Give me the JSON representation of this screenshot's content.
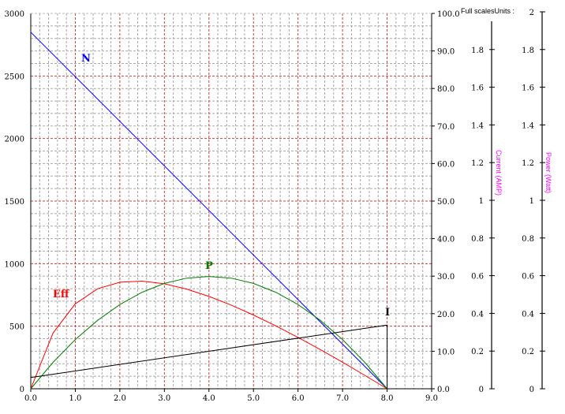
{
  "chart_data": {
    "type": "line",
    "title": "",
    "header_label": "Full scalesUnits :",
    "x": {
      "range": [
        0,
        9
      ],
      "ticks": [
        "0.0",
        "1.0",
        "2.0",
        "3.0",
        "4.0",
        "5.0",
        "6.0",
        "7.0",
        "8.0",
        "9.0"
      ]
    },
    "y_left": {
      "range": [
        0,
        3000
      ],
      "ticks": [
        "0",
        "500",
        "1000",
        "1500",
        "2000",
        "2500",
        "3000"
      ]
    },
    "y_right": {
      "range": [
        0,
        100
      ],
      "ticks": [
        "0.0",
        "10.0",
        "20.0",
        "30.0",
        "40.0",
        "50.0",
        "60.0",
        "70.0",
        "80.0",
        "90.0",
        "100.0"
      ]
    },
    "y_current": {
      "label": "Current (AMP)",
      "range": [
        0,
        2
      ],
      "ticks": [
        "0",
        "0.2",
        "0.4",
        "0.6",
        "0.8",
        "1",
        "1.2",
        "1.4",
        "1.6",
        "1.8"
      ]
    },
    "y_power": {
      "label": "Power (Watt)",
      "range": [
        0,
        2
      ],
      "ticks": [
        "0",
        "0.2",
        "0.4",
        "0.6",
        "0.8",
        "1",
        "1.2",
        "1.4",
        "1.6",
        "1.8",
        "2"
      ]
    },
    "grid": true,
    "series": [
      {
        "name": "N",
        "axis": "left",
        "color": "#0000ff",
        "x": [
          0,
          8.0
        ],
        "values": [
          2850,
          0
        ]
      },
      {
        "name": "Eff",
        "axis": "right",
        "color": "#ff0000",
        "x": [
          0,
          0.5,
          1,
          1.5,
          2,
          2.5,
          3,
          3.5,
          4,
          4.5,
          5,
          5.5,
          6,
          6.5,
          7,
          7.5,
          8
        ],
        "values": [
          0,
          14.85,
          22.63,
          26.63,
          28.38,
          28.67,
          27.96,
          26.55,
          24.61,
          22.29,
          19.65,
          16.76,
          13.68,
          10.44,
          7.07,
          3.58,
          0
        ]
      },
      {
        "name": "P",
        "axis": "power",
        "color": "#008000",
        "x": [
          0,
          0.5,
          1,
          1.5,
          2,
          2.5,
          3,
          3.5,
          4,
          4.5,
          5,
          5.5,
          6,
          6.5,
          7,
          7.5,
          8
        ],
        "values": [
          0,
          0.14,
          0.261,
          0.363,
          0.447,
          0.512,
          0.559,
          0.587,
          0.596,
          0.587,
          0.559,
          0.512,
          0.447,
          0.363,
          0.261,
          0.14,
          0
        ]
      },
      {
        "name": "I",
        "axis": "current",
        "color": "#000000",
        "x": [
          0,
          8.0,
          8.0
        ],
        "values": [
          0.06,
          0.338,
          0
        ]
      }
    ]
  }
}
